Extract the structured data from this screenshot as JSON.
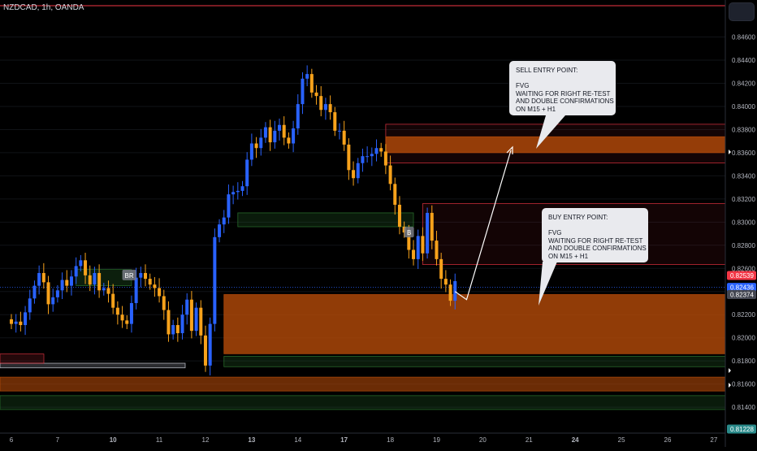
{
  "header": {
    "symbol": "NZDCAD, 1h, OANDA"
  },
  "chart_data": {
    "type": "candlestick",
    "ylim": [
      0.8119,
      0.8492
    ],
    "x_tick_labels": [
      {
        "label": "6",
        "i": 0
      },
      {
        "label": "7",
        "i": 10
      },
      {
        "label": "10",
        "i": 22
      },
      {
        "label": "11",
        "i": 32
      },
      {
        "label": "12",
        "i": 42
      },
      {
        "label": "13",
        "i": 52
      },
      {
        "label": "14",
        "i": 62
      },
      {
        "label": "17",
        "i": 72
      },
      {
        "label": "18",
        "i": 82
      },
      {
        "label": "19",
        "i": 92
      },
      {
        "label": "20",
        "i": 102
      },
      {
        "label": "21",
        "i": 112
      },
      {
        "label": "24",
        "i": 122
      },
      {
        "label": "25",
        "i": 132
      },
      {
        "label": "26",
        "i": 142
      },
      {
        "label": "27",
        "i": 152
      }
    ],
    "y_ticks": [
      "0.84600",
      "0.84400",
      "0.84200",
      "0.84000",
      "0.83800",
      "0.83600",
      "0.83400",
      "0.83200",
      "0.83000",
      "0.82800",
      "0.82600",
      "0.82400",
      "0.82200",
      "0.82000",
      "0.81800",
      "0.81600",
      "0.81400"
    ],
    "price_labels": [
      {
        "text": "0.82539",
        "value": 0.82539,
        "color": "#f23645"
      },
      {
        "text": "0.82436",
        "value": 0.82436,
        "color": "#2962ff"
      },
      {
        "text": "0.82374",
        "value": 0.82374,
        "color": "#434651"
      },
      {
        "text": "0.81228",
        "value": 0.81228,
        "color": "#2a8a8a"
      }
    ],
    "series": [
      {
        "name": "NZDCAD",
        "closes": [
          0.8212,
          0.8214,
          0.8211,
          0.8222,
          0.8234,
          0.8245,
          0.8256,
          0.8248,
          0.8229,
          0.8235,
          0.8241,
          0.825,
          0.8245,
          0.8253,
          0.8262,
          0.8267,
          0.8254,
          0.8246,
          0.8256,
          0.8241,
          0.8243,
          0.8238,
          0.8226,
          0.822,
          0.8215,
          0.8212,
          0.823,
          0.8252,
          0.8256,
          0.8251,
          0.8246,
          0.8243,
          0.8236,
          0.8224,
          0.8203,
          0.8211,
          0.8204,
          0.822,
          0.8233,
          0.8206,
          0.8226,
          0.8202,
          0.8176,
          0.8212,
          0.8287,
          0.8298,
          0.8304,
          0.8324,
          0.8326,
          0.8327,
          0.8331,
          0.8354,
          0.8368,
          0.8364,
          0.8373,
          0.8382,
          0.8369,
          0.8379,
          0.8384,
          0.8373,
          0.8368,
          0.8381,
          0.8402,
          0.8424,
          0.8428,
          0.8412,
          0.8409,
          0.8397,
          0.8402,
          0.8395,
          0.8379,
          0.8379,
          0.8367,
          0.8345,
          0.8338,
          0.8351,
          0.8357,
          0.8357,
          0.8359,
          0.8364,
          0.8361,
          0.8349,
          0.8333,
          0.8315,
          0.8296,
          0.8291,
          0.8276,
          0.8268,
          0.8288,
          0.8273,
          0.8308,
          0.8284,
          0.8268,
          0.8251,
          0.8246,
          0.8232,
          0.8249
        ],
        "volatility": "intraday hourly bars, bullish bars drawn blue, bearish bars drawn orange"
      }
    ],
    "zones": [
      {
        "kind": "sell-fvg-zone",
        "top": 0.83846,
        "bottom": 0.83512,
        "color": "#f23645"
      },
      {
        "kind": "sell-fvg-core",
        "top": 0.83738,
        "bottom": 0.836,
        "color": "#c2500a"
      },
      {
        "kind": "buy-fvg-zone",
        "top": 0.82374,
        "bottom": 0.81862,
        "color": "#c2500a"
      },
      {
        "kind": "upper-range-box",
        "top": 0.8316,
        "bottom": 0.82633,
        "color": "#f23645"
      },
      {
        "kind": "demand-box",
        "top": 0.8308,
        "bottom": 0.8296,
        "color": "#2e7d32"
      },
      {
        "kind": "lower-demand-box",
        "top": 0.8184,
        "bottom": 0.8175,
        "color": "#2e7d32"
      },
      {
        "kind": "lower-supply-box",
        "top": 0.8166,
        "bottom": 0.8154,
        "color": "#c2500a"
      },
      {
        "kind": "lower-green-box",
        "top": 0.815,
        "bottom": 0.8138,
        "color": "#2e7d32"
      }
    ],
    "labels": [
      {
        "text": "BR",
        "i": 24,
        "price": 0.8254
      },
      {
        "text": "B",
        "i": 85,
        "price": 0.8291
      }
    ],
    "colors": {
      "up": "#2962ff",
      "down": "#f7a21b",
      "grid": "#101317",
      "axis_text": "#b2b5be"
    }
  },
  "annotations": {
    "sell": "SELL ENTRY POINT:\n\nFVG\nWAITING FOR RIGHT RE-TEST\nAND DOUBLE CONFIRMATIONS\nON M15 + H1",
    "buy": "BUY ENTRY POINT:\n\nFVG\nWAITING FOR RIGHT RE-TEST\nAND DOUBLE CONFIRMATIONS\nON M15 + H1"
  }
}
